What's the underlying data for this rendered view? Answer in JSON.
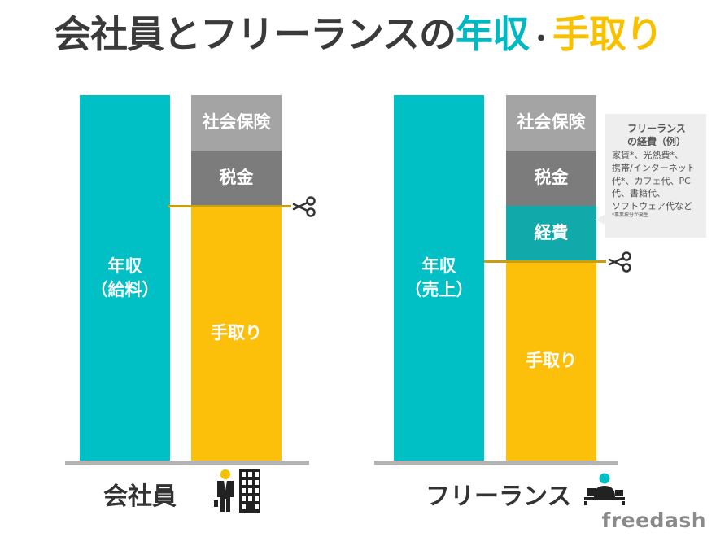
{
  "title": {
    "part1": "会社員とフリーランスの",
    "part2": "年収",
    "separator": "・",
    "part3": "手取り"
  },
  "colors": {
    "teal": "#00c0c6",
    "dark_teal": "#12a9ab",
    "yellow": "#fcc00a",
    "light_gray": "#a4a4a4",
    "dark_gray": "#7c7c7c",
    "cut_line": "#c99e10",
    "title_teal": "#00b9c3",
    "title_yellow": "#f7c100"
  },
  "employee": {
    "label": "会社員",
    "income_bar": {
      "line1": "年収",
      "line2": "（給料）"
    },
    "social_insurance": "社会保険",
    "tax": "税金",
    "take_home": "手取り",
    "icons": [
      "businessman-icon",
      "office-building-icon"
    ]
  },
  "freelance": {
    "label": "フリーランス",
    "income_bar": {
      "line1": "年収",
      "line2": "（売上）"
    },
    "social_insurance": "社会保険",
    "tax": "税金",
    "expenses": "経費",
    "take_home": "手取り",
    "icons": [
      "desk-worker-icon"
    ]
  },
  "expense_note": {
    "title_line1": "フリーランス",
    "title_line2": "の経費（例）",
    "lines": [
      "家賃*、光熱費*、",
      "携帯/インターネット",
      "代*、カフェ代、PC",
      "代、書籍代、",
      "ソフトウェア代など"
    ],
    "footnote": "*事業按分が発生"
  },
  "logo": "freedash"
}
